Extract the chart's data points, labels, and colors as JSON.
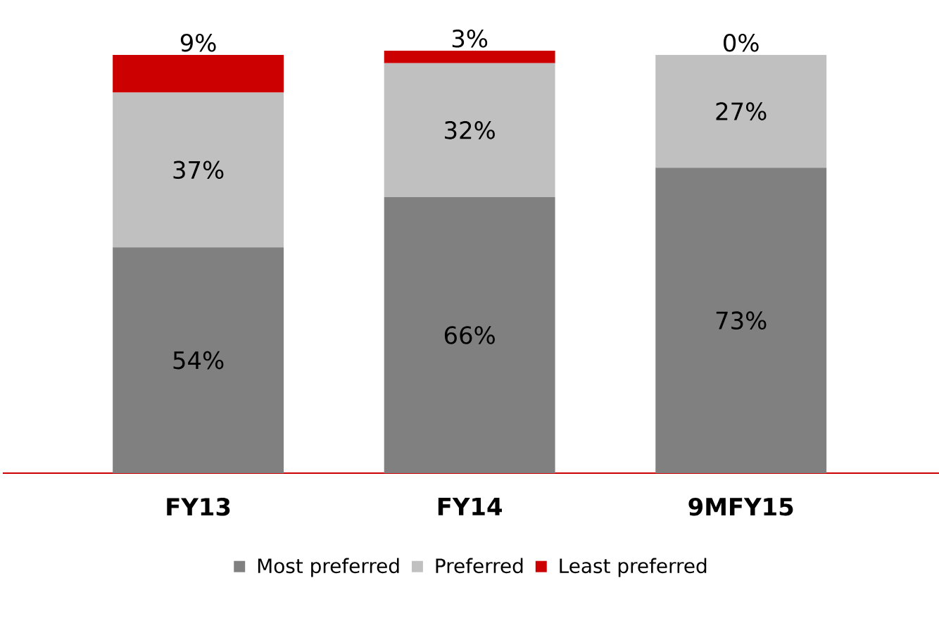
{
  "chart_data": {
    "type": "bar",
    "stacked": true,
    "categories": [
      "FY13",
      "FY14",
      "9MFY15"
    ],
    "series": [
      {
        "name": "Most preferred",
        "color": "#808080",
        "values": [
          54,
          66,
          73
        ],
        "value_labels": [
          "54%",
          "66%",
          "73%"
        ]
      },
      {
        "name": "Preferred",
        "color": "#c0c0c0",
        "values": [
          37,
          32,
          27
        ],
        "value_labels": [
          "37%",
          "32%",
          "27%"
        ]
      },
      {
        "name": "Least preferred",
        "color": "#cc0000",
        "values": [
          9,
          3,
          0
        ],
        "value_labels": [
          "9%",
          "3%",
          "0%"
        ]
      }
    ],
    "legend": "bottom"
  }
}
